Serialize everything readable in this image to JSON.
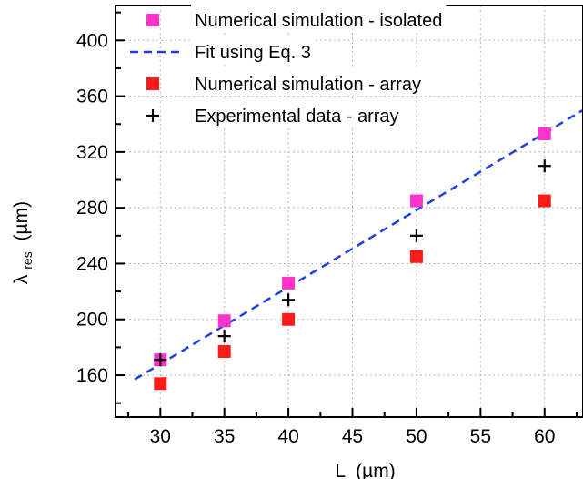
{
  "chart_data": {
    "type": "scatter",
    "xlabel": {
      "main": "L",
      "unit": "(µm)"
    },
    "ylabel": {
      "symbol": "λ",
      "subscript": "res",
      "unit": "(µm)"
    },
    "xlim": [
      26.5,
      63
    ],
    "ylim": [
      130,
      425
    ],
    "x_ticks": [
      30,
      35,
      40,
      45,
      50,
      55,
      60
    ],
    "y_ticks": [
      160,
      200,
      240,
      280,
      320,
      360,
      400
    ],
    "grid": true,
    "legend_position": "top",
    "series": [
      {
        "name": "Numerical simulation - isolated",
        "marker": "square",
        "color": "#ff33cc",
        "x": [
          30,
          35,
          40,
          50,
          60
        ],
        "y": [
          171,
          199,
          226,
          285,
          333
        ]
      },
      {
        "name": "Fit using Eq. 3",
        "marker": "dashed-line",
        "color": "#1f3fe8",
        "x": [
          28,
          63
        ],
        "y": [
          157,
          350
        ]
      },
      {
        "name": "Numerical simulation - array",
        "marker": "square",
        "color": "#ff1a1a",
        "x": [
          30,
          35,
          40,
          50,
          60
        ],
        "y": [
          154,
          177,
          200,
          245,
          285
        ]
      },
      {
        "name": "Experimental data - array",
        "marker": "plus",
        "color": "#000000",
        "x": [
          30,
          35,
          40,
          50,
          60
        ],
        "y": [
          171,
          188,
          214,
          260,
          310
        ]
      }
    ]
  }
}
